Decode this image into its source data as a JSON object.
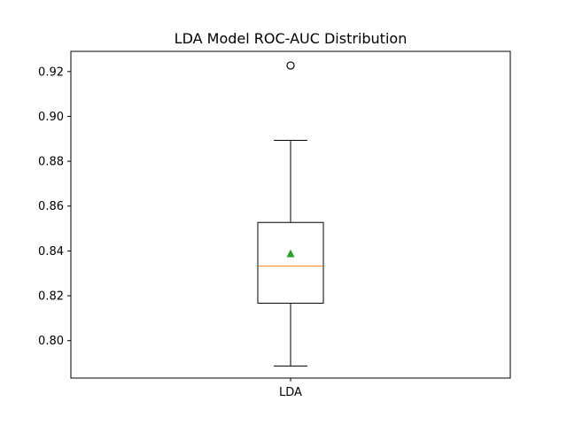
{
  "chart_data": {
    "type": "box",
    "title": "LDA Model ROC-AUC Distribution",
    "xlabel": "",
    "ylabel": "",
    "ylim": [
      0.7833,
      0.929
    ],
    "yticks": [
      0.8,
      0.82,
      0.84,
      0.86,
      0.88,
      0.9,
      0.92
    ],
    "ytick_labels": [
      "0.80",
      "0.82",
      "0.84",
      "0.86",
      "0.88",
      "0.90",
      "0.92"
    ],
    "categories": [
      "LDA"
    ],
    "grid": false,
    "legend": "none",
    "boxes": [
      {
        "name": "LDA",
        "whisker_low": 0.7887,
        "q1": 0.8167,
        "median": 0.8333,
        "q3": 0.8527,
        "whisker_high": 0.8893,
        "mean": 0.8387,
        "outliers": [
          0.9227
        ]
      }
    ],
    "colors": {
      "box": "#000000",
      "median": "#ff7f0e",
      "mean": "#2ca02c",
      "outlier": "#000000"
    }
  }
}
